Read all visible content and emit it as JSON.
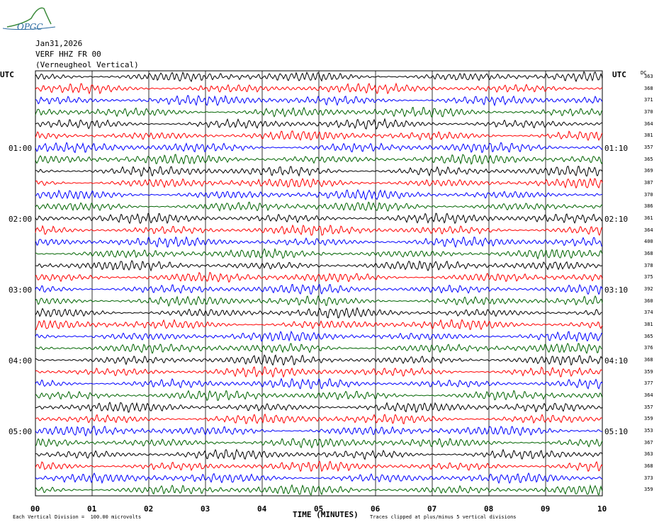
{
  "header": {
    "logo_text": "OPGC",
    "date": "Jan31,2026",
    "station": "VERF HHZ FR 00",
    "station_desc": "(Verneugheol Vertical)"
  },
  "left_axis": {
    "title": "UTC",
    "hour_labels": [
      "01:00",
      "02:00",
      "03:00",
      "04:00",
      "05:00"
    ]
  },
  "right_axis": {
    "title": "UTC",
    "dc_title": "DC",
    "hour_labels": [
      "01:10",
      "02:10",
      "03:10",
      "04:10",
      "05:10"
    ]
  },
  "dc_values": [
    "363",
    "368",
    "371",
    "370",
    "364",
    "381",
    "357",
    "365",
    "369",
    "387",
    "370",
    "386",
    "361",
    "364",
    "400",
    "368",
    "378",
    "375",
    "392",
    "360",
    "374",
    "381",
    "365",
    "376",
    "368",
    "359",
    "377",
    "364",
    "357",
    "359",
    "353",
    "367",
    "363",
    "368",
    "373",
    "359"
  ],
  "footer": {
    "x_title": "TIME (MINUTES)",
    "left_note": "Each Vertical Division =  100.00 microvolts",
    "right_note": "Traces clipped at plus/minus 5 vertical divisions"
  },
  "chart_data": {
    "type": "line",
    "title": "VERF HHZ FR 00 (Verneugheol Vertical) Jan31,2026",
    "xlabel": "TIME (MINUTES)",
    "xlim": [
      0,
      10
    ],
    "x_ticks": [
      "00",
      "01",
      "02",
      "03",
      "04",
      "05",
      "06",
      "07",
      "08",
      "09",
      "10"
    ],
    "trace_colors": [
      "#000000",
      "#ff0000",
      "#0000ff",
      "#006400"
    ],
    "trace_count": 36,
    "trace_interval_minutes": 10,
    "grid": "vertical lines every minute",
    "series_note": "helicorder traces, one per 10-minute window"
  }
}
